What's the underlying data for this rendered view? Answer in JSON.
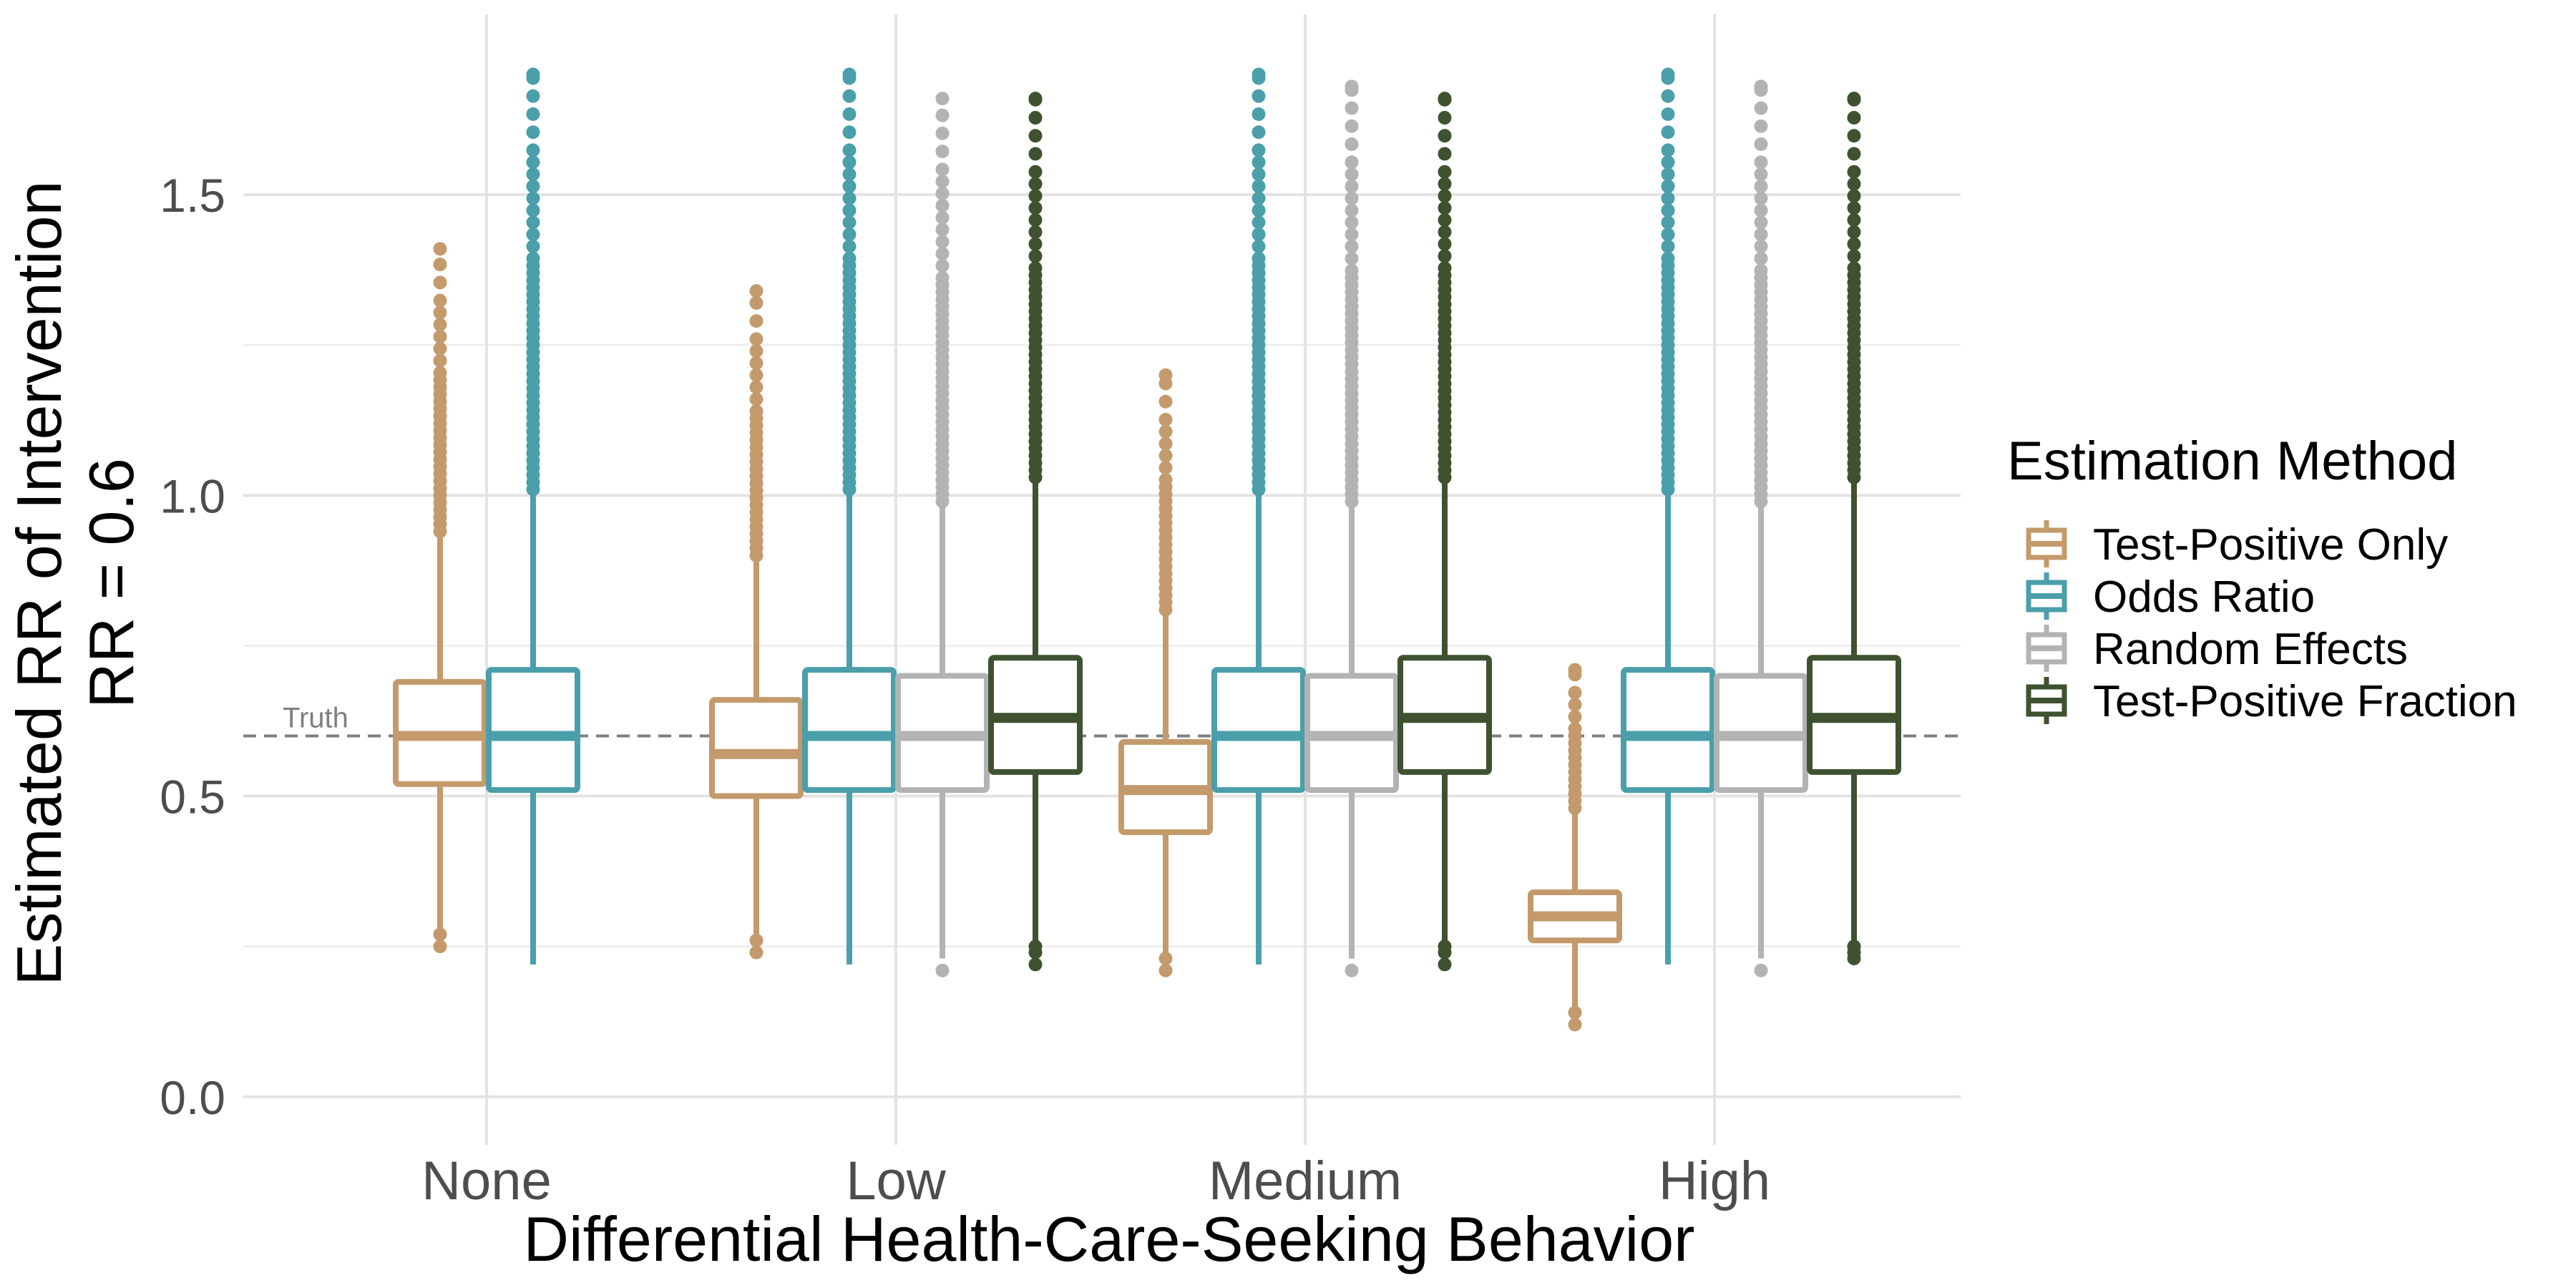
{
  "chart_data": {
    "type": "boxplot",
    "xlabel": "Differential Health-Care-Seeking Behavior",
    "ylabel_line1": "Estimated RR of Intervention",
    "ylabel_line2": "RR = 0.6",
    "ylim": [
      -0.08,
      1.8
    ],
    "yticks": [
      "0.0",
      "0.5",
      "1.0",
      "1.5"
    ],
    "ytick_values": [
      0.0,
      0.5,
      1.0,
      1.5
    ],
    "categories": [
      "None",
      "Low",
      "Medium",
      "High"
    ],
    "grid": true,
    "reference_line": {
      "value": 0.6,
      "label": "Truth"
    },
    "legend": {
      "title": "Estimation Method",
      "position": "right"
    },
    "series": [
      {
        "name": "Test-Positive Only",
        "color": "#c49a6c",
        "boxes": [
          {
            "category": "None",
            "whisker_low": 0.27,
            "q1": 0.52,
            "median": 0.6,
            "q3": 0.69,
            "whisker_high": 0.93,
            "outliers_low": [
              0.25,
              0.27
            ],
            "outlier_high_max": 1.41
          },
          {
            "category": "Low",
            "whisker_low": 0.26,
            "q1": 0.5,
            "median": 0.57,
            "q3": 0.66,
            "whisker_high": 0.89,
            "outliers_low": [
              0.24,
              0.26
            ],
            "outlier_high_max": 1.34
          },
          {
            "category": "Medium",
            "whisker_low": 0.23,
            "q1": 0.44,
            "median": 0.51,
            "q3": 0.59,
            "whisker_high": 0.8,
            "outliers_low": [
              0.21,
              0.23
            ],
            "outlier_high_max": 1.2
          },
          {
            "category": "High",
            "whisker_low": 0.14,
            "q1": 0.26,
            "median": 0.3,
            "q3": 0.34,
            "whisker_high": 0.47,
            "outliers_low": [
              0.12,
              0.14
            ],
            "outlier_high_max": 0.71
          }
        ]
      },
      {
        "name": "Odds Ratio",
        "color": "#4a9fab",
        "boxes": [
          {
            "category": "None",
            "whisker_low": 0.22,
            "q1": 0.51,
            "median": 0.6,
            "q3": 0.71,
            "whisker_high": 1.0,
            "outliers_low": [],
            "outlier_high_max": 1.7
          },
          {
            "category": "Low",
            "whisker_low": 0.22,
            "q1": 0.51,
            "median": 0.6,
            "q3": 0.71,
            "whisker_high": 1.0,
            "outliers_low": [],
            "outlier_high_max": 1.7
          },
          {
            "category": "Medium",
            "whisker_low": 0.22,
            "q1": 0.51,
            "median": 0.6,
            "q3": 0.71,
            "whisker_high": 1.0,
            "outliers_low": [],
            "outlier_high_max": 1.7
          },
          {
            "category": "High",
            "whisker_low": 0.22,
            "q1": 0.51,
            "median": 0.6,
            "q3": 0.71,
            "whisker_high": 1.0,
            "outliers_low": [],
            "outlier_high_max": 1.7
          }
        ]
      },
      {
        "name": "Random Effects",
        "color": "#b3b3b3",
        "boxes": [
          {
            "category": "Low",
            "whisker_low": 0.23,
            "q1": 0.51,
            "median": 0.6,
            "q3": 0.7,
            "whisker_high": 0.98,
            "outliers_low": [
              0.21
            ],
            "outlier_high_max": 1.66
          },
          {
            "category": "Medium",
            "whisker_low": 0.23,
            "q1": 0.51,
            "median": 0.6,
            "q3": 0.7,
            "whisker_high": 0.98,
            "outliers_low": [
              0.21
            ],
            "outlier_high_max": 1.68
          },
          {
            "category": "High",
            "whisker_low": 0.23,
            "q1": 0.51,
            "median": 0.6,
            "q3": 0.7,
            "whisker_high": 0.98,
            "outliers_low": [
              0.21
            ],
            "outlier_high_max": 1.68
          }
        ]
      },
      {
        "name": "Test-Positive Fraction",
        "color": "#3e5230",
        "boxes": [
          {
            "category": "Low",
            "whisker_low": 0.25,
            "q1": 0.54,
            "median": 0.63,
            "q3": 0.73,
            "whisker_high": 1.02,
            "outliers_low": [
              0.22,
              0.24,
              0.25
            ],
            "outlier_high_max": 1.66
          },
          {
            "category": "Medium",
            "whisker_low": 0.25,
            "q1": 0.54,
            "median": 0.63,
            "q3": 0.73,
            "whisker_high": 1.02,
            "outliers_low": [
              0.22,
              0.24,
              0.25
            ],
            "outlier_high_max": 1.66
          },
          {
            "category": "High",
            "whisker_low": 0.25,
            "q1": 0.54,
            "median": 0.63,
            "q3": 0.73,
            "whisker_high": 1.02,
            "outliers_low": [
              0.23,
              0.24,
              0.25
            ],
            "outlier_high_max": 1.66
          }
        ]
      }
    ]
  }
}
